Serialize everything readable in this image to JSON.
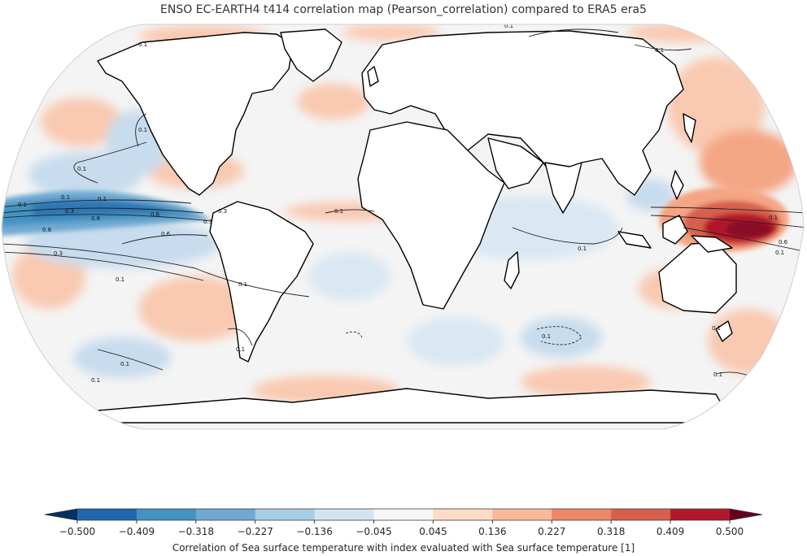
{
  "title": "ENSO EC-EARTH4 t414 correlation map (Pearson_correlation) compared to ERA5 era5",
  "map": {
    "projection": "Robinson",
    "variable": "Sea surface temperature",
    "contour_levels": [
      "0.1",
      "0.3",
      "0.6",
      "0.8"
    ],
    "contour_labels": [
      {
        "text": "0.1"
      },
      {
        "text": "0.1"
      },
      {
        "text": "0.1"
      },
      {
        "text": "0.1"
      },
      {
        "text": "0.1"
      },
      {
        "text": "0.3"
      },
      {
        "text": "0.8"
      },
      {
        "text": "0.6"
      },
      {
        "text": "0.6"
      },
      {
        "text": "0.3"
      },
      {
        "text": "0.3"
      },
      {
        "text": "0.8"
      },
      {
        "text": "0.3"
      },
      {
        "text": "0.1"
      },
      {
        "text": "0.1"
      },
      {
        "text": "0.1"
      },
      {
        "text": "0.1"
      },
      {
        "text": "0.1"
      },
      {
        "text": "0.1"
      },
      {
        "text": "0.1"
      },
      {
        "text": "0.1"
      },
      {
        "text": "0.1"
      },
      {
        "text": "0.1"
      },
      {
        "text": "0.1"
      },
      {
        "text": "0.6"
      },
      {
        "text": "0.1"
      },
      {
        "text": "0.1"
      },
      {
        "text": "0.1"
      },
      {
        "text": "0.1"
      }
    ]
  },
  "colorbar": {
    "label": "Correlation of Sea surface temperature with index evaluated with Sea surface temperature [1]",
    "min": -0.5,
    "max": 0.5,
    "ticks": [
      "−0.500",
      "−0.409",
      "−0.318",
      "−0.227",
      "−0.136",
      "−0.045",
      "0.045",
      "0.136",
      "0.227",
      "0.318",
      "0.409",
      "0.500"
    ],
    "colors": [
      "#2166ac",
      "#4393c3",
      "#6fa9d2",
      "#a6cde3",
      "#d1e5f0",
      "#f7f7f7",
      "#fddbc7",
      "#f9b99c",
      "#ec8768",
      "#d6604d",
      "#b2182b"
    ],
    "under_color": "#053061",
    "over_color": "#67001f"
  }
}
